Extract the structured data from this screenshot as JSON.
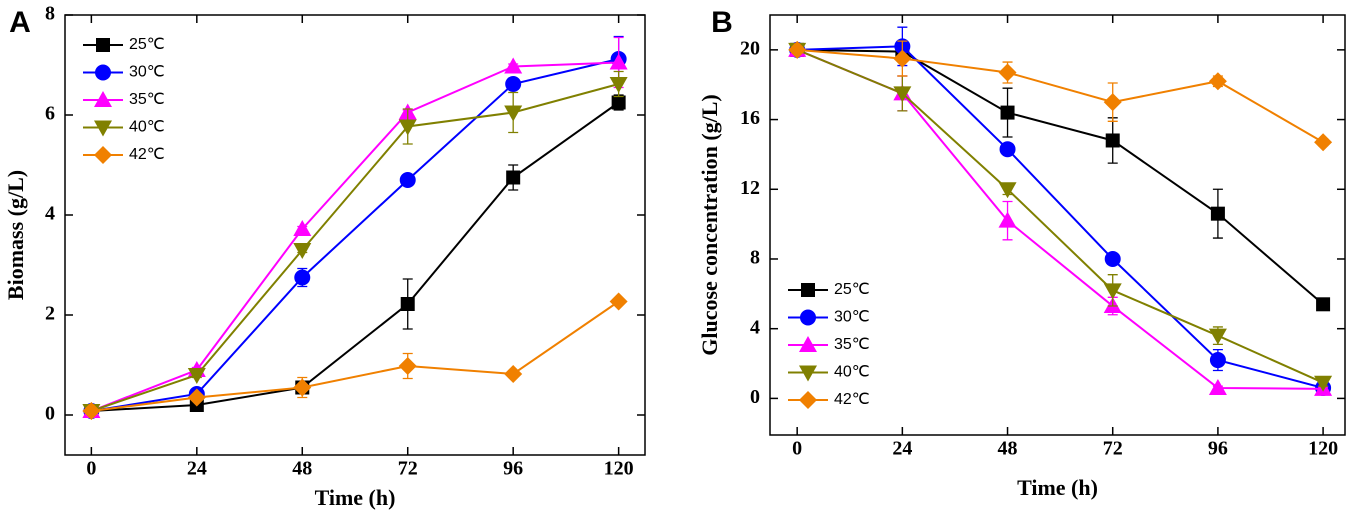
{
  "chart_data": [
    {
      "type": "line",
      "panel_label": "A",
      "x_label": "Time (h)",
      "y_label": "Biomass (g/L)",
      "x": [
        0,
        24,
        48,
        72,
        96,
        120
      ],
      "xlim": [
        -6,
        126
      ],
      "xticks": [
        0,
        24,
        48,
        72,
        96,
        120
      ],
      "ylim": [
        -0.8,
        8
      ],
      "yticks": [
        0,
        2,
        4,
        6,
        8
      ],
      "legend": "upper left",
      "series": [
        {
          "name": "25℃",
          "color": "#000000",
          "marker": "square",
          "values": [
            0.08,
            0.2,
            0.55,
            2.22,
            4.75,
            6.25
          ],
          "errors": [
            0.03,
            0.05,
            0.1,
            0.5,
            0.25,
            0.15
          ]
        },
        {
          "name": "30℃",
          "color": "#0000ff",
          "marker": "circle",
          "values": [
            0.08,
            0.42,
            2.75,
            4.7,
            6.62,
            7.12
          ],
          "errors": [
            0.02,
            0.05,
            0.18,
            0.05,
            0.1,
            0.45
          ]
        },
        {
          "name": "35℃",
          "color": "#ff00ff",
          "marker": "triangle-up",
          "values": [
            0.08,
            0.9,
            3.72,
            6.05,
            6.97,
            7.05
          ],
          "errors": [
            0.02,
            0.05,
            0.05,
            0.05,
            0.05,
            0.5
          ]
        },
        {
          "name": "40℃",
          "color": "#808000",
          "marker": "triangle-down",
          "values": [
            0.08,
            0.8,
            3.3,
            5.77,
            6.05,
            6.62
          ],
          "errors": [
            0.02,
            0.05,
            0.05,
            0.35,
            0.4,
            0.25
          ]
        },
        {
          "name": "42℃",
          "color": "#f08000",
          "marker": "diamond",
          "values": [
            0.08,
            0.35,
            0.55,
            0.98,
            0.82,
            2.27
          ],
          "errors": [
            0.02,
            0.05,
            0.2,
            0.25,
            0.05,
            0.05
          ]
        }
      ]
    },
    {
      "type": "line",
      "panel_label": "B",
      "x_label": "Time (h)",
      "y_label": "Glucose concentration (g/L)",
      "x": [
        0,
        24,
        48,
        72,
        96,
        120
      ],
      "xlim": [
        -6.2,
        125
      ],
      "xticks": [
        0,
        24,
        48,
        72,
        96,
        120
      ],
      "ylim": [
        -2.1,
        22
      ],
      "yticks": [
        0,
        4,
        8,
        12,
        16,
        20
      ],
      "legend": "lower left",
      "series": [
        {
          "name": "25℃",
          "color": "#000000",
          "marker": "square",
          "values": [
            20,
            19.9,
            16.4,
            14.8,
            10.6,
            5.4
          ],
          "errors": [
            0.2,
            0.3,
            1.4,
            1.3,
            1.4,
            0.2
          ]
        },
        {
          "name": "30℃",
          "color": "#0000ff",
          "marker": "circle",
          "values": [
            20,
            20.2,
            14.3,
            8,
            2.2,
            0.6
          ],
          "errors": [
            0.2,
            1.1,
            0.2,
            0.2,
            0.6,
            0.2
          ]
        },
        {
          "name": "35℃",
          "color": "#ff00ff",
          "marker": "triangle-up",
          "values": [
            20,
            17.5,
            10.2,
            5.3,
            0.6,
            0.55
          ],
          "errors": [
            0.2,
            1,
            1.1,
            0.5,
            0.1,
            0.1
          ]
        },
        {
          "name": "40℃",
          "color": "#808000",
          "marker": "triangle-down",
          "values": [
            20,
            17.5,
            12,
            6.2,
            3.6,
            0.9
          ],
          "errors": [
            0.2,
            1,
            0.3,
            0.9,
            0.5,
            0.2
          ]
        },
        {
          "name": "42℃",
          "color": "#f08000",
          "marker": "diamond",
          "values": [
            20,
            19.5,
            18.7,
            17,
            18.2,
            14.7
          ],
          "errors": [
            0.2,
            1,
            0.6,
            1.1,
            0.3,
            0.2
          ]
        }
      ]
    }
  ]
}
